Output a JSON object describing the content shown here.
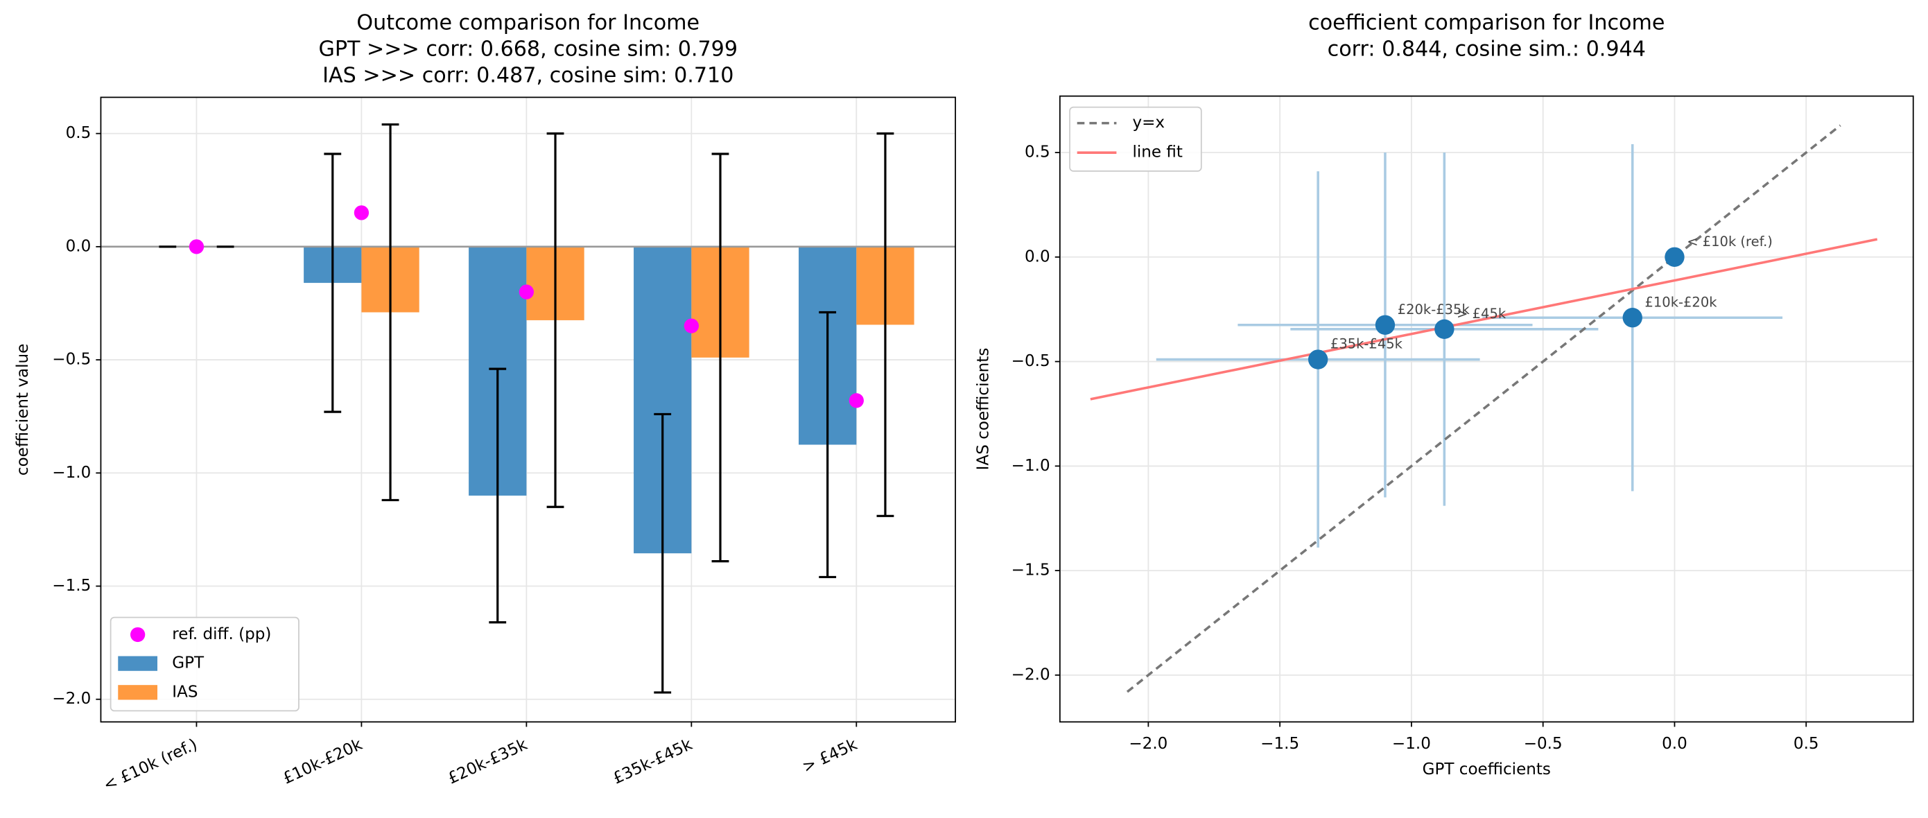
{
  "chart_data": [
    {
      "type": "bar",
      "title": [
        "Outcome comparison for Income",
        "GPT >>> corr: 0.668,  cosine sim: 0.799",
        "IAS >>> corr: 0.487,  cosine sim: 0.710"
      ],
      "ylabel": "coefficient value",
      "categories": [
        "< £10k (ref.)",
        "£10k-£20k",
        "£20k-£35k",
        "£35k-£45k",
        "> £45k"
      ],
      "series": [
        {
          "name": "GPT",
          "color": "#4a90c4",
          "values": [
            0,
            -0.16,
            -1.1,
            -1.355,
            -0.875
          ],
          "errors": [
            0,
            0.57,
            0.56,
            0.615,
            0.585
          ]
        },
        {
          "name": "IAS",
          "color": "#ff9a40",
          "values": [
            0,
            -0.29,
            -0.325,
            -0.49,
            -0.345
          ],
          "errors": [
            0,
            0.83,
            0.825,
            0.9,
            0.845
          ]
        },
        {
          "name": "ref. diff. (pp)",
          "color": "#ff00ff",
          "marker": "point",
          "values": [
            0,
            0.15,
            -0.2,
            -0.35,
            -0.68
          ]
        }
      ],
      "xlim": [
        -0.58,
        4.6
      ],
      "ylim": [
        -2.1,
        0.66
      ],
      "yticks": [
        {
          "value": -2,
          "label": "−2.0"
        },
        {
          "value": -1.5,
          "label": "−1.5"
        },
        {
          "value": -1,
          "label": "−1.0"
        },
        {
          "value": -0.5,
          "label": "−0.5"
        },
        {
          "value": 0,
          "label": "0.0"
        },
        0.5
      ],
      "grid": true,
      "legend": "lower left"
    },
    {
      "type": "scatter",
      "title": [
        "coefficient comparison for Income",
        "corr: 0.844, cosine sim.: 0.944"
      ],
      "xlabel": "GPT coefficients",
      "ylabel": "IAS coefficients",
      "points": {
        "labels": [
          "< £10k (ref.)",
          "£10k-£20k",
          "£20k-£35k",
          "£35k-£45k",
          "> £45k"
        ],
        "x": [
          0,
          -0.16,
          -1.1,
          -1.355,
          -0.875
        ],
        "y": [
          0,
          -0.29,
          -0.325,
          -0.49,
          -0.345
        ],
        "xerr": [
          0,
          0.57,
          0.56,
          0.615,
          0.585
        ],
        "yerr": [
          0,
          0.83,
          0.825,
          0.9,
          0.845
        ],
        "color": "#1f77b4",
        "error_color": "#a9cbe3"
      },
      "lines": [
        {
          "name": "y=x",
          "x": [
            -2.08,
            0.63
          ],
          "y": [
            -2.08,
            0.63
          ],
          "color": "#777777",
          "dash": true
        },
        {
          "name": "line fit",
          "x": [
            -2.22,
            0.77
          ],
          "y": [
            -0.68,
            0.085
          ],
          "color": "#ff7777"
        }
      ],
      "xlim": [
        -2.336,
        0.907
      ],
      "ylim": [
        -2.224,
        0.77
      ],
      "xticks": [
        {
          "value": -2,
          "label": "−2.0"
        },
        {
          "value": -1.5,
          "label": "−1.5"
        },
        {
          "value": -1,
          "label": "−1.0"
        },
        {
          "value": -0.5,
          "label": "−0.5"
        },
        {
          "value": 0,
          "label": "0.0"
        },
        0.5
      ],
      "yticks": [
        {
          "value": -2,
          "label": "−2.0"
        },
        {
          "value": -1.5,
          "label": "−1.5"
        },
        {
          "value": -1,
          "label": "−1.0"
        },
        {
          "value": -0.5,
          "label": "−0.5"
        },
        {
          "value": 0,
          "label": "0.0"
        },
        0.5
      ],
      "grid": true,
      "legend": "upper left"
    }
  ]
}
